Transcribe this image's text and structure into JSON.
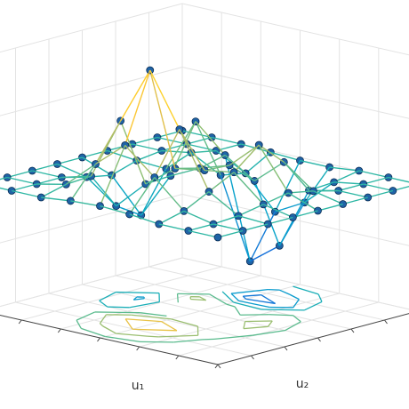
{
  "chart_data": {
    "type": "surface",
    "xlabel": "u₁",
    "ylabel": "u₂",
    "x": [
      -3,
      -2.25,
      -1.5,
      -0.75,
      0,
      0.75,
      1.5,
      2.25,
      3
    ],
    "y": [
      -3,
      -2.25,
      -1.5,
      -0.75,
      0,
      0.75,
      1.5,
      2.25,
      3
    ],
    "z": [
      [
        0,
        0,
        0,
        -0.1,
        -0.2,
        -0.2,
        0,
        0,
        0
      ],
      [
        0,
        0,
        0,
        -1,
        -3,
        -2,
        -0.3,
        0,
        0
      ],
      [
        0,
        0,
        0.3,
        -0.7,
        -5.7,
        -4.3,
        -0.4,
        0,
        0
      ],
      [
        0,
        -0.2,
        -0.3,
        3.1,
        1.4,
        0.2,
        1.8,
        0.4,
        0
      ],
      [
        0,
        -0.7,
        -2.8,
        0.1,
        1,
        1.6,
        3.3,
        0.7,
        0
      ],
      [
        0,
        -0.4,
        -1.8,
        0,
        1.4,
        1.7,
        2,
        0.4,
        0
      ],
      [
        0,
        0,
        0.5,
        4.4,
        8,
        4.7,
        1.2,
        0.1,
        0
      ],
      [
        0,
        0,
        0.4,
        2.1,
        3.7,
        2.1,
        0.4,
        0,
        0
      ],
      [
        0,
        0,
        0,
        0.2,
        0.3,
        0.2,
        0,
        0,
        0
      ]
    ],
    "xlim": [
      -3,
      3
    ],
    "ylim": [
      -3,
      3
    ],
    "zlim": [
      -8,
      8
    ],
    "xticks": [
      -3,
      -2,
      -1,
      0,
      1,
      2,
      3
    ],
    "yticks": [
      -3,
      -2,
      -1,
      0,
      1,
      2,
      3
    ],
    "zticks": [
      -8,
      -4,
      0,
      4,
      8
    ],
    "grid": true,
    "colormap": [
      "#352a87",
      "#0f5cdd",
      "#1481d6",
      "#06a4ca",
      "#2eb7a4",
      "#87bf77",
      "#d1bb59",
      "#fec832",
      "#f9fb0e"
    ],
    "marker_color": "#1f63a6",
    "contour_levels": [
      -4.5,
      -2.5,
      -1,
      1,
      2.5,
      5
    ]
  }
}
